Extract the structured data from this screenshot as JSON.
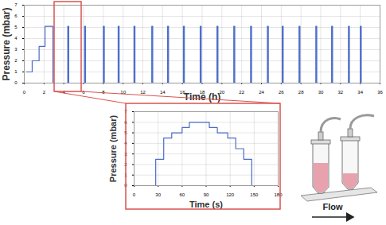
{
  "chart_data": [
    {
      "type": "line",
      "x_label": "Time (h)",
      "y_label": "Pressure (mbar)",
      "x": [
        0.2,
        0.8,
        1.5,
        2.1,
        2.9,
        4.4,
        4.5,
        6.1,
        6.2,
        8.0,
        8.1,
        9.5,
        9.6,
        11.1,
        11.2,
        12.9,
        13.0,
        14.5,
        14.6,
        16.1,
        16.2,
        17.8,
        17.9,
        19.5,
        19.6,
        21.2,
        21.3,
        22.9,
        23.0,
        24.6,
        24.7,
        26.1,
        26.2,
        27.8,
        27.9,
        29.5,
        29.6,
        31.1,
        31.2,
        32.8,
        32.9,
        34.0,
        34.1,
        36
      ],
      "values": [
        1,
        2,
        3.3,
        5.1,
        0,
        5.1,
        0,
        5.1,
        0,
        5.1,
        0,
        5.1,
        0,
        5.1,
        0,
        5.1,
        0,
        5.1,
        0,
        5.1,
        0,
        5.1,
        0,
        5.1,
        0,
        5.1,
        0,
        5.1,
        0,
        5.1,
        0,
        5.1,
        0,
        5.1,
        0,
        5.1,
        0,
        5.1,
        0,
        5.1,
        0,
        5.1,
        0,
        0
      ],
      "color": "#4b6cc8",
      "line_style": "step",
      "xlim": [
        0,
        36
      ],
      "xticks": [
        0,
        2,
        4,
        6,
        8,
        10,
        12,
        14,
        16,
        18,
        20,
        22,
        24,
        26,
        28,
        30,
        32,
        34,
        36
      ],
      "ylim": [
        0,
        7
      ],
      "yticks": [
        0,
        1,
        2,
        3,
        4,
        5,
        6,
        7
      ],
      "grid": true
    },
    {
      "type": "line",
      "x_label": "Time (s)",
      "y_label": "Pressure (mbar)",
      "x": [
        0,
        27,
        37,
        47,
        60,
        69,
        94,
        104,
        117,
        127,
        137,
        147,
        180
      ],
      "values": [
        0,
        2.5,
        4.5,
        5,
        5.5,
        6,
        5.5,
        5,
        4.5,
        3.5,
        2.5,
        0,
        0
      ],
      "color": "#4b6cc8",
      "line_style": "step",
      "xlim": [
        0,
        180
      ],
      "xticks": [
        0,
        30,
        60,
        90,
        120,
        150,
        180
      ],
      "ylim": [
        0,
        7
      ],
      "yticks": [
        0,
        1,
        2,
        3,
        4,
        5,
        6,
        7
      ],
      "grid": true
    }
  ],
  "illustration": {
    "label": "Flow"
  }
}
